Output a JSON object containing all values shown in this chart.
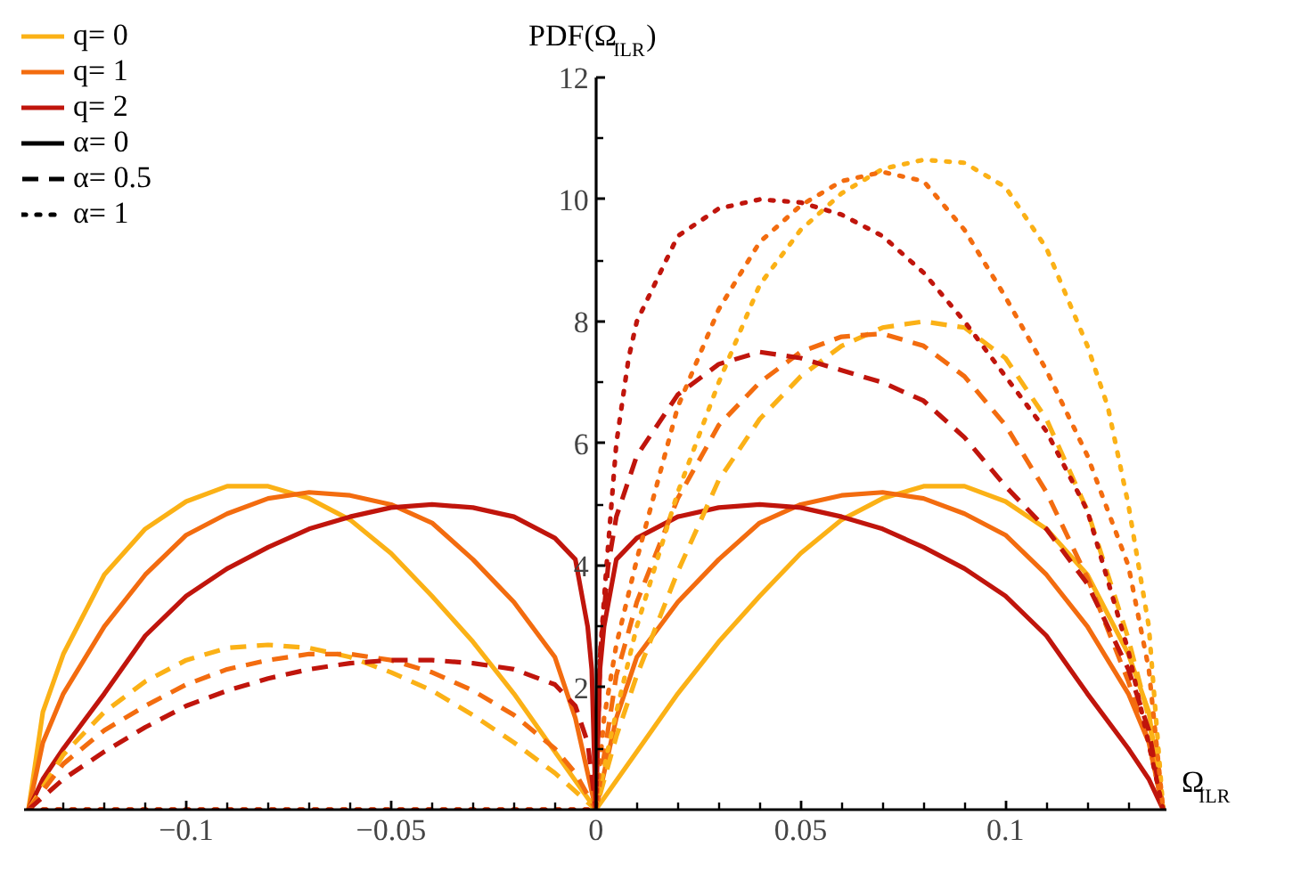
{
  "chart_data": {
    "type": "line",
    "ylabel": "PDF(Ω$_{ILR}$)",
    "xlabel": "Ω$_{ILR}$",
    "xlim": [
      -0.1395,
      0.1395
    ],
    "ylim": [
      0,
      12
    ],
    "xticks": [
      {
        "value": -0.13,
        "label": null
      },
      {
        "value": -0.12,
        "label": null
      },
      {
        "value": -0.11,
        "label": null
      },
      {
        "value": -0.1,
        "label": "−0.1"
      },
      {
        "value": -0.09,
        "label": null
      },
      {
        "value": -0.08,
        "label": null
      },
      {
        "value": -0.07,
        "label": null
      },
      {
        "value": -0.06,
        "label": null
      },
      {
        "value": -0.05,
        "label": "−0.05"
      },
      {
        "value": -0.04,
        "label": null
      },
      {
        "value": -0.03,
        "label": null
      },
      {
        "value": -0.02,
        "label": null
      },
      {
        "value": -0.01,
        "label": null
      },
      0,
      {
        "value": 0.01,
        "label": null
      },
      {
        "value": 0.02,
        "label": null
      },
      {
        "value": 0.03,
        "label": null
      },
      {
        "value": 0.04,
        "label": null
      },
      0.05,
      {
        "value": 0.06,
        "label": null
      },
      {
        "value": 0.07,
        "label": null
      },
      {
        "value": 0.08,
        "label": null
      },
      {
        "value": 0.09,
        "label": null
      },
      0.1,
      {
        "value": 0.11,
        "label": null
      },
      {
        "value": 0.12,
        "label": null
      },
      {
        "value": 0.13,
        "label": null
      }
    ],
    "yticks": [
      {
        "value": 1,
        "label": null
      },
      2,
      {
        "value": 3,
        "label": null
      },
      4,
      {
        "value": 5,
        "label": null
      },
      6,
      {
        "value": 7,
        "label": null
      },
      8,
      {
        "value": 9,
        "label": null
      },
      10,
      {
        "value": 11,
        "label": null
      },
      12
    ],
    "legend": "top left",
    "grid": false,
    "series": [
      {
        "color": "#fbb116",
        "line_style": "solid",
        "x": [
          -0.1385,
          -0.135,
          -0.13,
          -0.12,
          -0.11,
          -0.1,
          -0.09,
          -0.08,
          -0.07,
          -0.06,
          -0.05,
          -0.04,
          -0.03,
          -0.02,
          -0.01,
          0,
          0.01,
          0.02,
          0.03,
          0.04,
          0.05,
          0.06,
          0.07,
          0.08,
          0.09,
          0.1,
          0.11,
          0.12,
          0.13,
          0.135,
          0.1385
        ],
        "values": [
          0,
          1.6,
          2.55,
          3.85,
          4.6,
          5.05,
          5.3,
          5.3,
          5.1,
          4.75,
          4.2,
          3.5,
          2.75,
          1.9,
          0.95,
          0,
          0.95,
          1.9,
          2.75,
          3.5,
          4.2,
          4.75,
          5.1,
          5.3,
          5.3,
          5.05,
          4.6,
          3.85,
          2.55,
          1.6,
          0
        ]
      },
      {
        "color": "#f36c0f",
        "line_style": "solid",
        "x": [
          -0.1385,
          -0.135,
          -0.13,
          -0.12,
          -0.11,
          -0.1,
          -0.09,
          -0.08,
          -0.07,
          -0.06,
          -0.05,
          -0.04,
          -0.03,
          -0.02,
          -0.01,
          -0.005,
          0,
          0.005,
          0.01,
          0.02,
          0.03,
          0.04,
          0.05,
          0.06,
          0.07,
          0.08,
          0.09,
          0.1,
          0.11,
          0.12,
          0.13,
          0.135,
          0.1385
        ],
        "values": [
          0,
          1.1,
          1.9,
          3.0,
          3.85,
          4.5,
          4.85,
          5.1,
          5.2,
          5.15,
          5.0,
          4.7,
          4.1,
          3.4,
          2.5,
          1.5,
          0,
          1.5,
          2.5,
          3.4,
          4.1,
          4.7,
          5.0,
          5.15,
          5.2,
          5.1,
          4.85,
          4.5,
          3.85,
          3.0,
          1.9,
          1.1,
          0
        ]
      },
      {
        "color": "#c0150c",
        "line_style": "solid",
        "x": [
          -0.1385,
          -0.135,
          -0.13,
          -0.12,
          -0.11,
          -0.1,
          -0.09,
          -0.08,
          -0.07,
          -0.06,
          -0.05,
          -0.04,
          -0.03,
          -0.02,
          -0.01,
          -0.005,
          -0.002,
          -0.001,
          0,
          0.001,
          0.002,
          0.005,
          0.01,
          0.02,
          0.03,
          0.04,
          0.05,
          0.06,
          0.07,
          0.08,
          0.09,
          0.1,
          0.11,
          0.12,
          0.13,
          0.135,
          0.1385
        ],
        "values": [
          0,
          0.5,
          1.0,
          1.9,
          2.85,
          3.5,
          3.95,
          4.3,
          4.6,
          4.8,
          4.95,
          5.0,
          4.95,
          4.8,
          4.45,
          4.1,
          3.0,
          2.3,
          0,
          2.3,
          3.0,
          4.1,
          4.45,
          4.8,
          4.95,
          5.0,
          4.95,
          4.8,
          4.6,
          4.3,
          3.95,
          3.5,
          2.85,
          1.9,
          1.0,
          0.5,
          0
        ]
      },
      {
        "color": "#fbb116",
        "line_style": "dashed",
        "x": [
          -0.1385,
          -0.13,
          -0.12,
          -0.11,
          -0.1,
          -0.09,
          -0.08,
          -0.07,
          -0.06,
          -0.05,
          -0.04,
          -0.03,
          -0.02,
          -0.01,
          0,
          0.005,
          0.01,
          0.02,
          0.03,
          0.04,
          0.05,
          0.06,
          0.07,
          0.08,
          0.09,
          0.1,
          0.11,
          0.12,
          0.13,
          0.135,
          0.1385
        ],
        "values": [
          0,
          0.9,
          1.6,
          2.1,
          2.45,
          2.65,
          2.7,
          2.65,
          2.5,
          2.25,
          1.95,
          1.55,
          1.1,
          0.6,
          0,
          1.2,
          2.2,
          3.9,
          5.4,
          6.4,
          7.1,
          7.6,
          7.9,
          8.0,
          7.9,
          7.4,
          6.4,
          4.9,
          2.8,
          1.5,
          0
        ]
      },
      {
        "color": "#f36c0f",
        "line_style": "dashed",
        "x": [
          -0.1385,
          -0.13,
          -0.12,
          -0.11,
          -0.1,
          -0.09,
          -0.08,
          -0.07,
          -0.06,
          -0.05,
          -0.04,
          -0.03,
          -0.02,
          -0.01,
          -0.005,
          0,
          0.005,
          0.01,
          0.02,
          0.03,
          0.04,
          0.05,
          0.06,
          0.07,
          0.08,
          0.09,
          0.1,
          0.11,
          0.12,
          0.13,
          0.135,
          0.1385
        ],
        "values": [
          0,
          0.75,
          1.3,
          1.7,
          2.05,
          2.3,
          2.45,
          2.55,
          2.55,
          2.45,
          2.25,
          1.95,
          1.55,
          1.0,
          0.6,
          0,
          2.2,
          3.4,
          5.1,
          6.3,
          7.0,
          7.5,
          7.75,
          7.8,
          7.6,
          7.1,
          6.3,
          5.2,
          3.8,
          2.1,
          1.1,
          0
        ]
      },
      {
        "color": "#c0150c",
        "line_style": "dashed",
        "x": [
          -0.1385,
          -0.13,
          -0.12,
          -0.11,
          -0.1,
          -0.09,
          -0.08,
          -0.07,
          -0.06,
          -0.05,
          -0.04,
          -0.03,
          -0.02,
          -0.01,
          -0.005,
          -0.002,
          0,
          0.001,
          0.003,
          0.005,
          0.01,
          0.02,
          0.03,
          0.04,
          0.05,
          0.06,
          0.07,
          0.08,
          0.09,
          0.1,
          0.11,
          0.12,
          0.13,
          0.135,
          0.1385
        ],
        "values": [
          0,
          0.5,
          0.95,
          1.35,
          1.7,
          1.95,
          2.15,
          2.3,
          2.4,
          2.45,
          2.45,
          2.4,
          2.3,
          2.05,
          1.7,
          1.1,
          0,
          2.5,
          4.0,
          4.8,
          5.8,
          6.8,
          7.3,
          7.5,
          7.4,
          7.2,
          7.0,
          6.7,
          6.1,
          5.3,
          4.6,
          3.7,
          2.3,
          1.3,
          0
        ]
      },
      {
        "color": "#fbb116",
        "line_style": "dotted",
        "x": [
          -0.1385,
          0,
          0.003,
          0.005,
          0.01,
          0.02,
          0.03,
          0.04,
          0.05,
          0.06,
          0.07,
          0.08,
          0.09,
          0.1,
          0.11,
          0.12,
          0.125,
          0.13,
          0.135,
          0.1385
        ],
        "values": [
          0,
          0,
          1.0,
          1.6,
          3.0,
          5.2,
          7.0,
          8.6,
          9.5,
          10.1,
          10.5,
          10.65,
          10.6,
          10.2,
          9.2,
          7.6,
          6.6,
          5.0,
          3.0,
          0
        ]
      },
      {
        "color": "#f36c0f",
        "line_style": "dotted",
        "x": [
          -0.1385,
          0,
          0.002,
          0.005,
          0.01,
          0.02,
          0.03,
          0.04,
          0.05,
          0.06,
          0.07,
          0.08,
          0.09,
          0.1,
          0.11,
          0.12,
          0.13,
          0.135,
          0.1385
        ],
        "values": [
          0,
          0,
          1.5,
          2.7,
          4.1,
          6.6,
          8.2,
          9.3,
          9.9,
          10.3,
          10.45,
          10.3,
          9.5,
          8.4,
          7.2,
          5.8,
          4.0,
          2.3,
          0
        ]
      },
      {
        "color": "#c0150c",
        "line_style": "dotted",
        "x": [
          -0.1385,
          0,
          0.001,
          0.0025,
          0.005,
          0.008,
          0.01,
          0.02,
          0.03,
          0.04,
          0.05,
          0.06,
          0.07,
          0.08,
          0.09,
          0.1,
          0.11,
          0.12,
          0.13,
          0.1385
        ],
        "values": [
          0,
          0,
          2.5,
          3.9,
          6.0,
          7.4,
          8.0,
          9.4,
          9.85,
          10.0,
          9.95,
          9.75,
          9.4,
          8.8,
          8.0,
          7.1,
          6.2,
          4.9,
          2.6,
          0
        ]
      },
      {
        "name": "q= 0",
        "color": "#fbb116",
        "line_style": "solid"
      },
      {
        "name": "q= 1",
        "color": "#f36c0f",
        "line_style": "solid"
      },
      {
        "name": "q= 2",
        "color": "#c0150c",
        "line_style": "solid"
      },
      {
        "name": "α= 0",
        "color": "#000000",
        "line_style": "solid"
      },
      {
        "name": "α= 0.5",
        "color": "#000000",
        "line_style": "dashed"
      },
      {
        "name": "α= 1",
        "color": "#000000",
        "line_style": "dotted"
      }
    ]
  }
}
